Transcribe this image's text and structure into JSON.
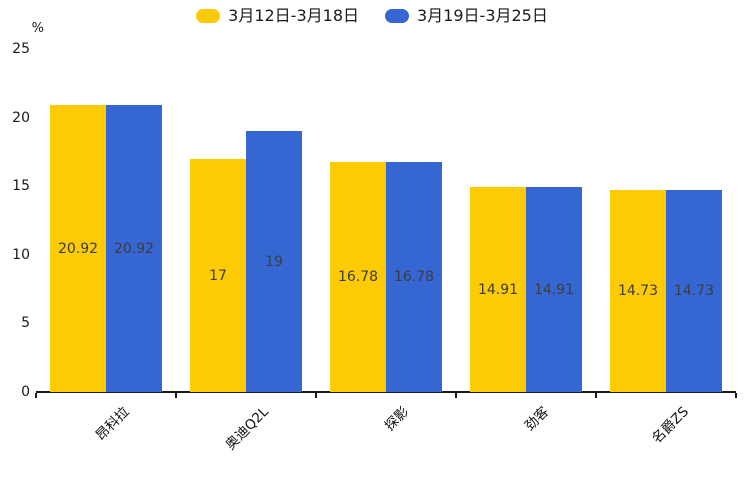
{
  "chart_data": {
    "type": "bar",
    "title": "",
    "unit_label": "%",
    "categories": [
      "昂科拉",
      "奥迪Q2L",
      "探影",
      "劲客",
      "名爵ZS"
    ],
    "series": [
      {
        "name": "3月12日-3月18日",
        "color": "#FDCB05",
        "values": [
          20.92,
          17,
          16.78,
          14.91,
          14.73
        ]
      },
      {
        "name": "3月19日-3月25日",
        "color": "#3566D2",
        "values": [
          20.92,
          19,
          16.78,
          14.91,
          14.73
        ]
      }
    ],
    "ylim": [
      0,
      25
    ],
    "yticks": [
      0,
      5,
      10,
      15,
      20,
      25
    ],
    "grid": false,
    "legend_position": "top",
    "value_label_color": "#3d3d3d",
    "axis_color": "#1a1a1a"
  }
}
